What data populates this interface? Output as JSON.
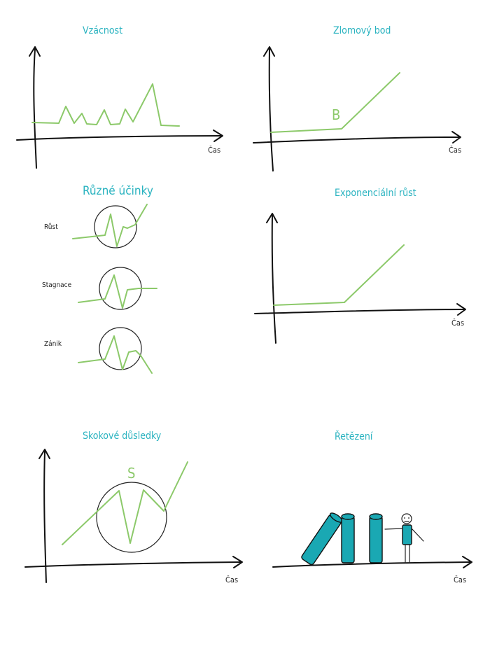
{
  "panels": {
    "vzacnost": {
      "title": "Vzácnost",
      "xlabel": "Čas"
    },
    "zlomovy": {
      "title": "Zlomový bod",
      "xlabel": "Čas",
      "mark": "B"
    },
    "ucinky": {
      "title": "Různé účinky",
      "rows": [
        "Růst",
        "Stagnace",
        "Zánik"
      ]
    },
    "exponencialni": {
      "title": "Exponenciální růst",
      "xlabel": "Čas"
    },
    "skokove": {
      "title": "Skokové důsledky",
      "xlabel": "Čas",
      "mark": "S"
    },
    "retezeni": {
      "title": "Řetězení",
      "xlabel": "Čas"
    }
  },
  "colors": {
    "accent_title": "#2ab3c0",
    "line": "#8cc96a",
    "domino": "#1aa8b3",
    "ink": "#111111"
  }
}
